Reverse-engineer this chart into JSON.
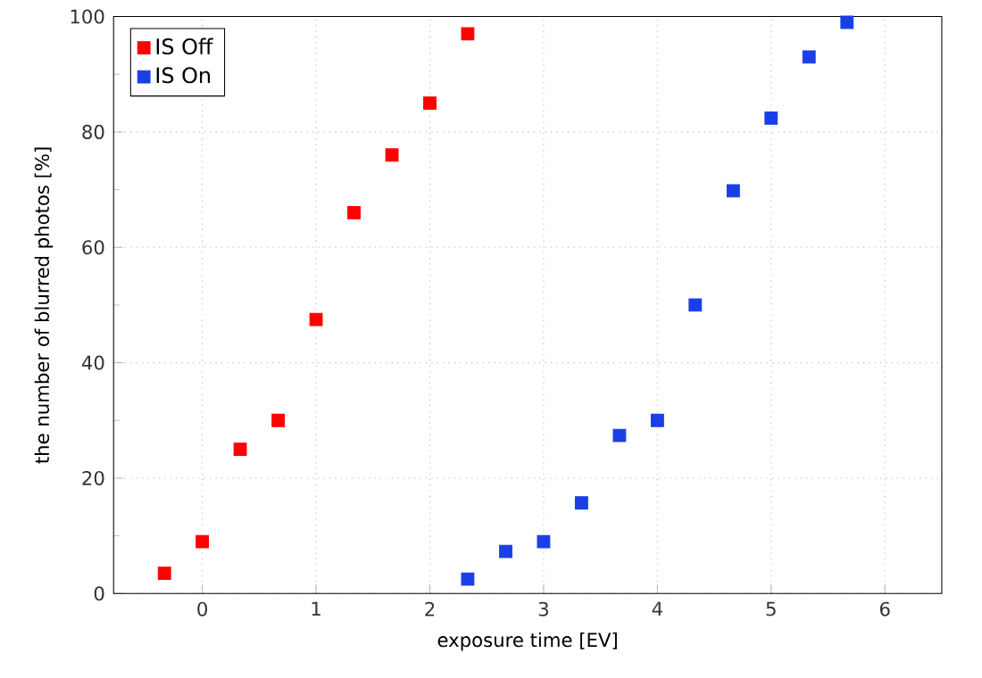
{
  "chart_data": {
    "type": "scatter",
    "xlabel": "exposure time [EV]",
    "ylabel": "the number of blurred photos [%]",
    "xlim": [
      -0.78,
      6.5
    ],
    "xticks": [
      0,
      1,
      2,
      3,
      4,
      5,
      6
    ],
    "ylim": [
      0,
      100
    ],
    "yticks": [
      0,
      20,
      40,
      60,
      80,
      100
    ],
    "grid": true,
    "legend": "top left",
    "marker": "square",
    "series": [
      {
        "name": "IS Off",
        "color": "#ff0000",
        "x": [
          -0.333,
          0,
          0.333,
          0.667,
          1,
          1.333,
          1.667,
          2,
          2.333
        ],
        "values": [
          3.5,
          9,
          25,
          30,
          47.5,
          66,
          76,
          85,
          97
        ]
      },
      {
        "name": "IS On",
        "color": "#1a3fe6",
        "x": [
          2.333,
          2.667,
          3,
          3.333,
          3.667,
          4,
          4.333,
          4.667,
          5,
          5.333,
          5.667
        ],
        "values": [
          2.5,
          7.3,
          9,
          15.7,
          27.4,
          30,
          50,
          69.8,
          82.4,
          93,
          99
        ]
      }
    ]
  }
}
